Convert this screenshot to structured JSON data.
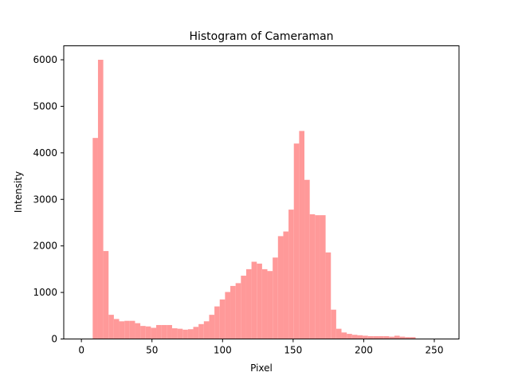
{
  "chart_data": {
    "type": "bar",
    "title": "Histogram of Cameraman",
    "xlabel": "Pixel",
    "ylabel": "Intensity",
    "xlim": [
      -12.5,
      267.5
    ],
    "ylim": [
      0,
      6300
    ],
    "xticks": [
      0,
      50,
      100,
      150,
      200,
      250
    ],
    "yticks": [
      0,
      1000,
      2000,
      3000,
      4000,
      5000,
      6000
    ],
    "bin_start": 8,
    "bin_width": 3.75,
    "bar_color": "#ff9999",
    "values": [
      4320,
      6000,
      1890,
      520,
      430,
      380,
      390,
      390,
      340,
      280,
      270,
      240,
      300,
      300,
      300,
      230,
      220,
      200,
      210,
      260,
      320,
      380,
      520,
      700,
      850,
      1010,
      1140,
      1200,
      1360,
      1500,
      1660,
      1620,
      1500,
      1460,
      1750,
      2210,
      2310,
      2780,
      4200,
      4470,
      3420,
      2680,
      2660,
      2660,
      1860,
      630,
      220,
      140,
      110,
      90,
      80,
      70,
      60,
      60,
      60,
      60,
      50,
      70,
      50,
      40,
      40
    ]
  }
}
